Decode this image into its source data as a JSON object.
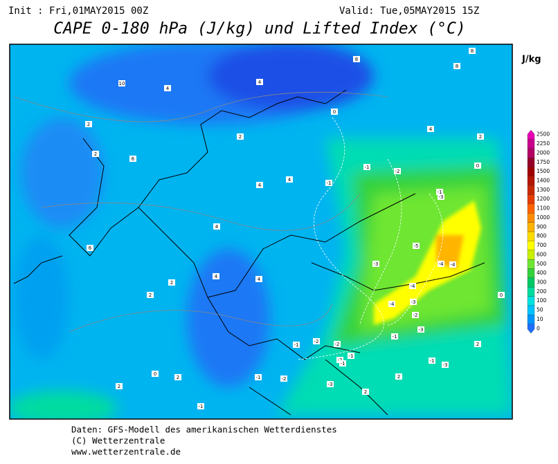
{
  "header": {
    "init": "Init : Fri,01MAY2015 00Z",
    "valid": "Valid: Tue,05MAY2015 15Z",
    "title": "CAPE 0-180 hPa (J/kg) und Lifted Index (°C)"
  },
  "colorbar": {
    "unit": "J/kg",
    "levels": [
      {
        "value": 0,
        "color": "#1e6eff"
      },
      {
        "value": 10,
        "color": "#0096ff"
      },
      {
        "value": 50,
        "color": "#00c3ff"
      },
      {
        "value": 100,
        "color": "#00e1e1"
      },
      {
        "value": 200,
        "color": "#00dca0"
      },
      {
        "value": 300,
        "color": "#00c864"
      },
      {
        "value": 400,
        "color": "#32d23c"
      },
      {
        "value": 500,
        "color": "#6ee632"
      },
      {
        "value": 600,
        "color": "#c8f000"
      },
      {
        "value": 700,
        "color": "#ffff00"
      },
      {
        "value": 800,
        "color": "#ffdc00"
      },
      {
        "value": 900,
        "color": "#ffb400"
      },
      {
        "value": 1000,
        "color": "#ff8c00"
      },
      {
        "value": 1100,
        "color": "#ff6400"
      },
      {
        "value": 1200,
        "color": "#e63c00"
      },
      {
        "value": 1300,
        "color": "#c82800"
      },
      {
        "value": 1400,
        "color": "#b41400"
      },
      {
        "value": 1500,
        "color": "#a00000"
      },
      {
        "value": 1750,
        "color": "#960028"
      },
      {
        "value": 2000,
        "color": "#b40064"
      },
      {
        "value": 2250,
        "color": "#c8008c"
      },
      {
        "value": 2500,
        "color": "#e600b4"
      }
    ]
  },
  "map": {
    "contour_labels": [
      "8",
      "8",
      "8",
      "10",
      "4",
      "4",
      "2",
      "2",
      "2",
      "6",
      "4",
      "4",
      "4",
      "2",
      "4",
      "6",
      "2",
      "4",
      "4",
      "2",
      "0",
      "-1",
      "-2",
      "-1",
      "-1",
      "-3",
      "-5",
      "-3",
      "-4",
      "-4",
      "-4",
      "-4",
      "-3",
      "-2",
      "-3",
      "-1",
      "-1",
      "-2",
      "-2",
      "-1",
      "-1",
      "-3",
      "-2",
      "-1",
      "0",
      "2",
      "2",
      "2",
      "2",
      "0",
      "-1",
      "-2",
      "-3",
      "-1",
      "2",
      "0"
    ]
  },
  "footer": [
    "Daten: GFS-Modell des amerikanischen Wetterdienstes",
    "(C) Wetterzentrale",
    "www.wetterzentrale.de"
  ]
}
